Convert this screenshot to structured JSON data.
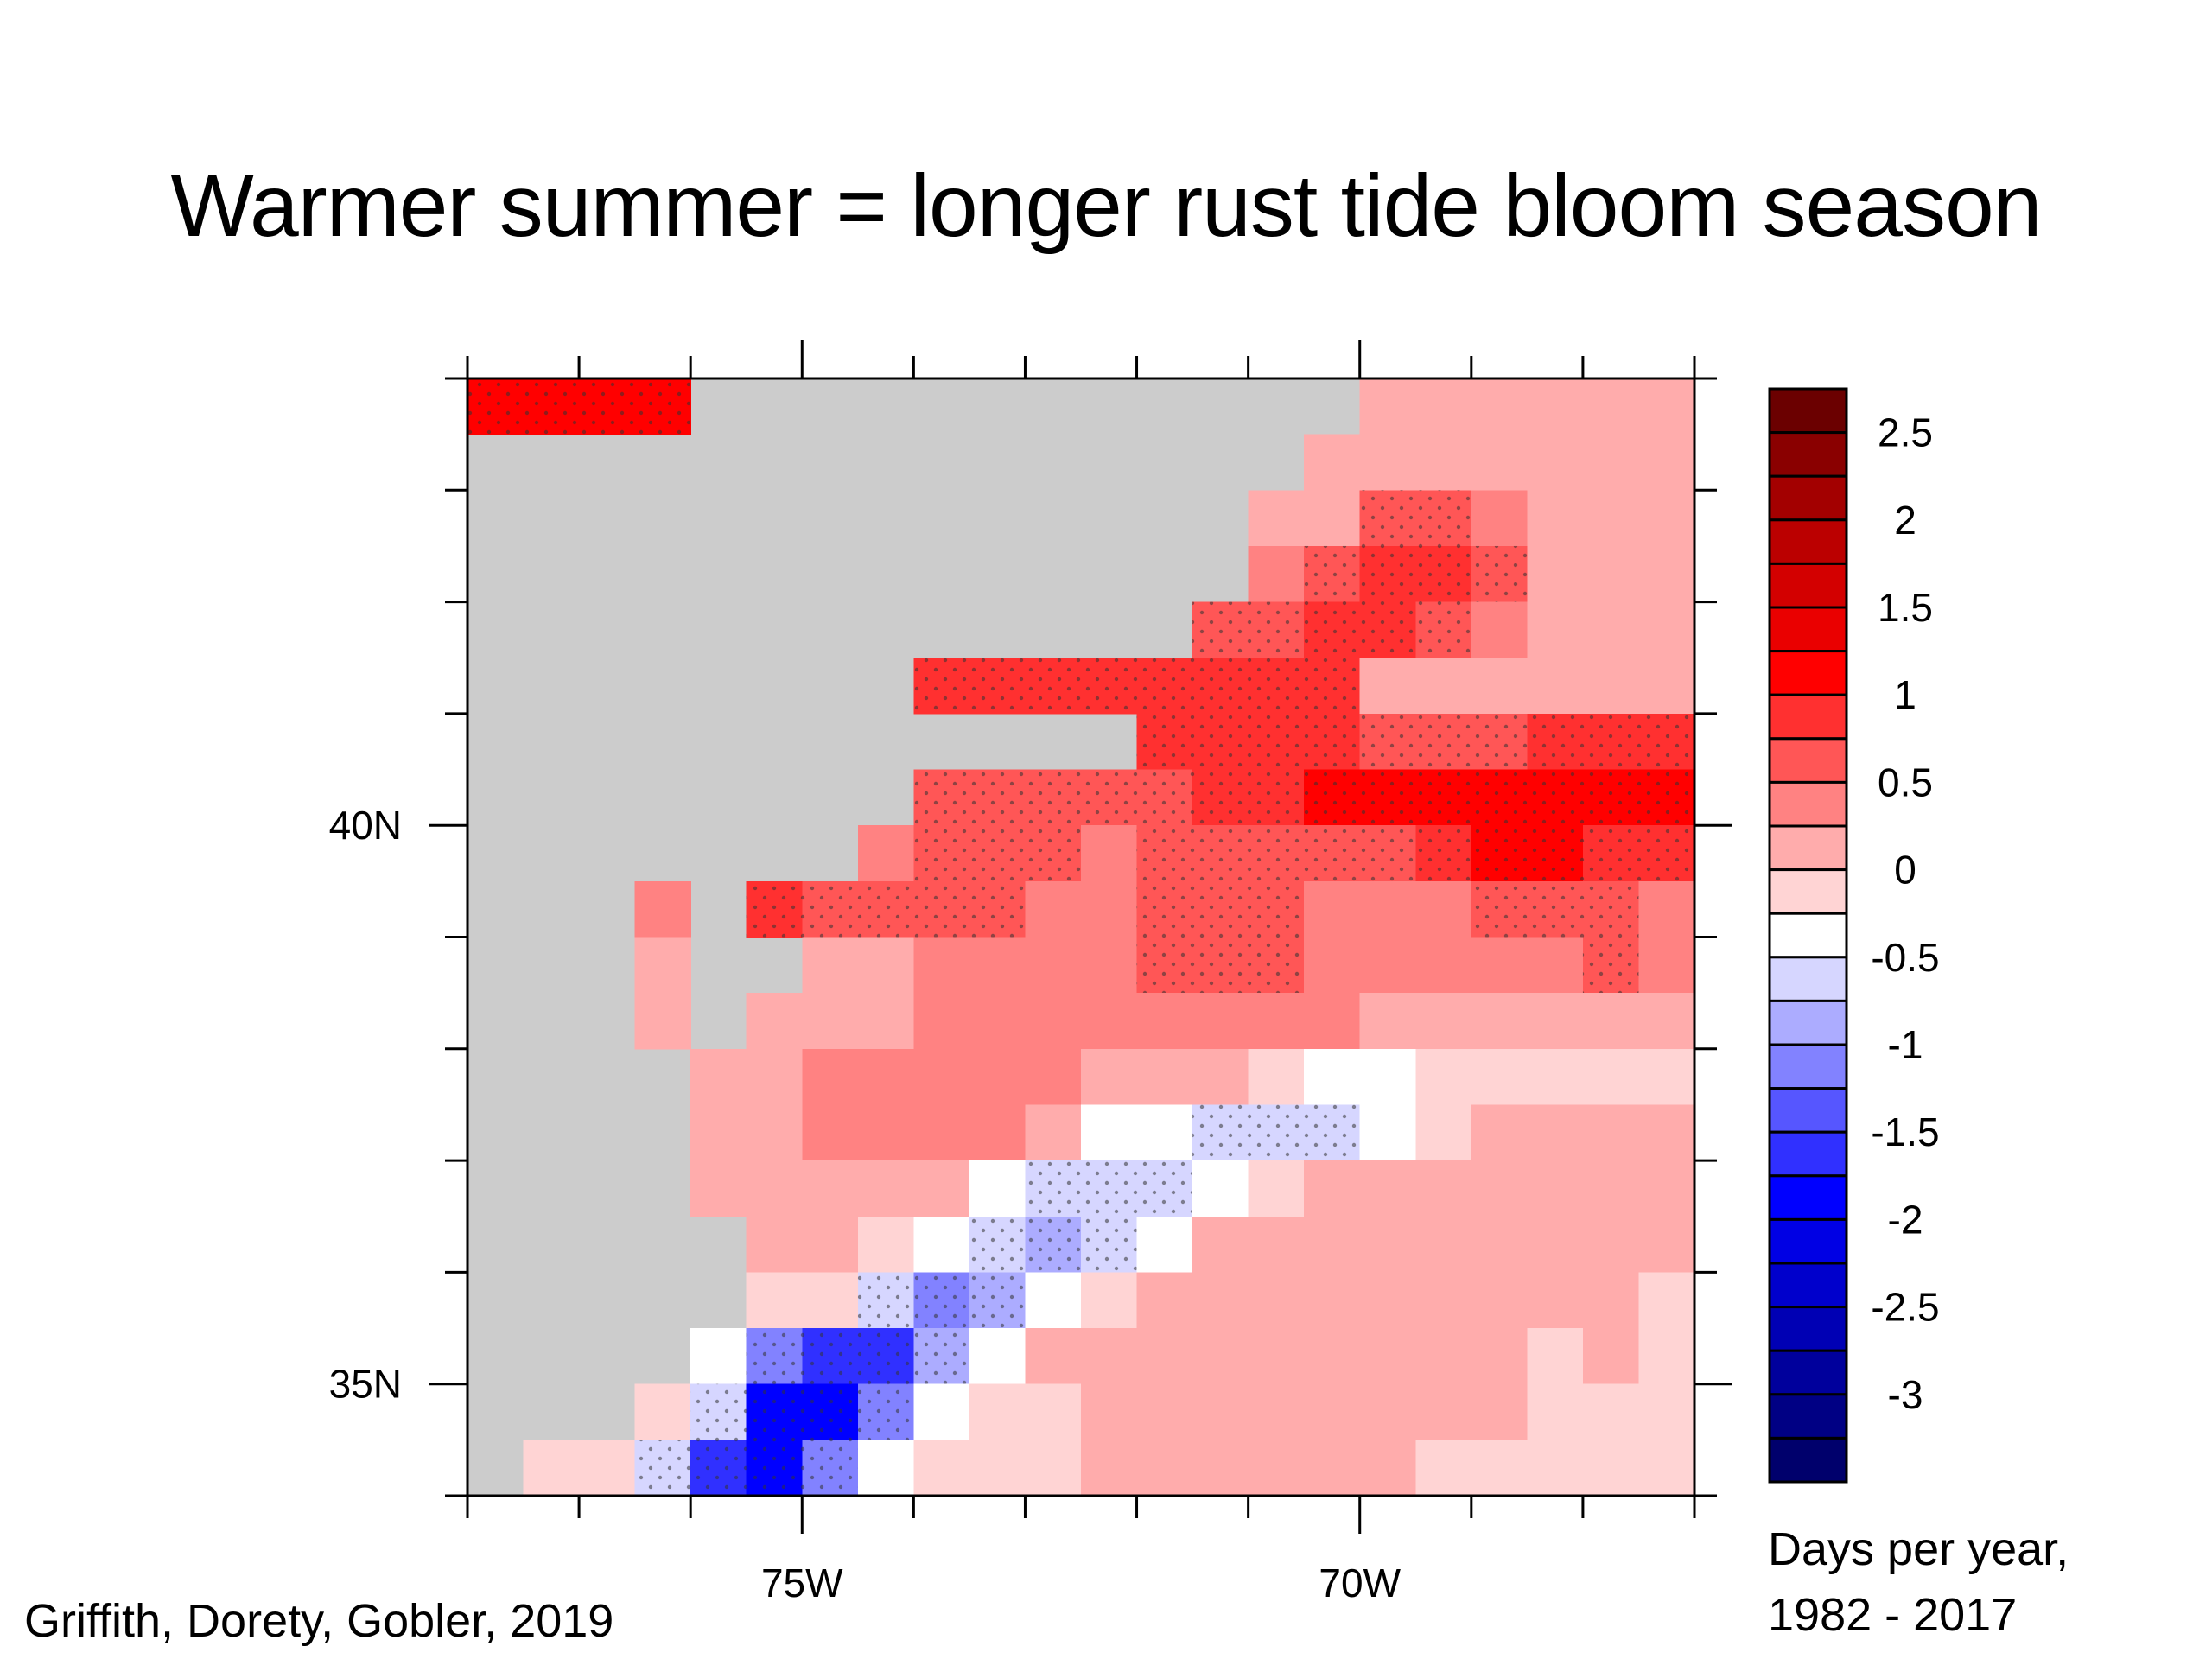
{
  "slide": {
    "title": "Warmer summer = longer rust tide bloom season",
    "citation": "Griffith, Dorety, Gobler, 2019",
    "units_line1": "Days per year,",
    "units_line2": "1982 - 2017"
  },
  "chart_data": {
    "type": "heatmap",
    "title": "",
    "xlabel": "",
    "ylabel": "",
    "xlim": [
      -78,
      -67
    ],
    "ylim": [
      34,
      44
    ],
    "land_color": "#cccccc",
    "x": [
      -77.75,
      -77.25,
      -76.75,
      -76.25,
      -75.75,
      -75.25,
      -74.75,
      -74.25,
      -73.75,
      -73.25,
      -72.75,
      -72.25,
      -71.75,
      -71.25,
      -70.75,
      -70.25,
      -69.75,
      -69.25,
      -68.75,
      -68.25,
      -67.75,
      -67.25
    ],
    "y": [
      43.75,
      43.25,
      42.75,
      42.25,
      41.75,
      41.25,
      40.75,
      40.25,
      39.75,
      39.25,
      38.75,
      38.25,
      37.75,
      37.25,
      36.75,
      36.25,
      35.75,
      35.25,
      34.75,
      34.25
    ],
    "values": [
      [
        1,
        1,
        1,
        1,
        null,
        null,
        null,
        null,
        null,
        null,
        null,
        null,
        null,
        null,
        null,
        null,
        0.1,
        0.1,
        0.1,
        0.1,
        0.1,
        0.1
      ],
      [
        null,
        null,
        null,
        null,
        null,
        null,
        null,
        null,
        null,
        null,
        null,
        null,
        null,
        null,
        null,
        0.1,
        0.1,
        0.1,
        0.1,
        0.1,
        0.1,
        0.1
      ],
      [
        null,
        null,
        null,
        null,
        null,
        null,
        null,
        null,
        null,
        null,
        null,
        null,
        null,
        null,
        0.1,
        0.1,
        0.6,
        0.6,
        0.4,
        0.1,
        0.1,
        0.1
      ],
      [
        null,
        null,
        null,
        null,
        null,
        null,
        null,
        null,
        null,
        null,
        null,
        null,
        null,
        null,
        0.4,
        0.6,
        0.9,
        0.9,
        0.6,
        0.1,
        0.1,
        0.1
      ],
      [
        null,
        null,
        null,
        null,
        null,
        null,
        null,
        null,
        null,
        null,
        null,
        null,
        null,
        0.6,
        0.6,
        0.9,
        0.9,
        0.6,
        0.4,
        0.1,
        0.1,
        0.1
      ],
      [
        null,
        null,
        null,
        null,
        null,
        null,
        null,
        null,
        0.9,
        0.9,
        0.9,
        0.9,
        0.9,
        0.9,
        0.9,
        0.9,
        0.1,
        0.1,
        0.1,
        0.1,
        0.1,
        0.1
      ],
      [
        null,
        null,
        null,
        null,
        null,
        null,
        null,
        null,
        null,
        null,
        null,
        null,
        0.9,
        0.9,
        0.9,
        0.9,
        0.6,
        0.6,
        0.6,
        0.9,
        0.9,
        0.9
      ],
      [
        null,
        null,
        null,
        null,
        null,
        null,
        null,
        null,
        0.6,
        0.6,
        0.6,
        0.6,
        0.6,
        0.9,
        0.9,
        1.1,
        1.1,
        1.1,
        1.1,
        1.1,
        1.1,
        1.1
      ],
      [
        null,
        null,
        null,
        null,
        null,
        null,
        null,
        0.4,
        0.6,
        0.6,
        0.6,
        0.4,
        0.6,
        0.6,
        0.6,
        0.6,
        0.6,
        0.9,
        1.1,
        1.1,
        0.9,
        0.9
      ],
      [
        null,
        null,
        null,
        0.4,
        null,
        0.9,
        0.6,
        0.6,
        0.6,
        0.6,
        0.4,
        0.4,
        0.6,
        0.6,
        0.6,
        0.4,
        0.4,
        0.4,
        0.6,
        0.6,
        0.6,
        0.4
      ],
      [
        null,
        null,
        null,
        0.1,
        null,
        null,
        0.1,
        0.1,
        0.4,
        0.4,
        0.4,
        0.4,
        0.6,
        0.6,
        0.6,
        0.4,
        0.4,
        0.4,
        0.4,
        0.4,
        0.6,
        0.4
      ],
      [
        null,
        null,
        null,
        0.1,
        null,
        0.1,
        0.1,
        0.1,
        0.4,
        0.4,
        0.4,
        0.4,
        0.4,
        0.4,
        0.4,
        0.4,
        0.1,
        0.1,
        0.1,
        0.1,
        0.1,
        0.1
      ],
      [
        null,
        null,
        null,
        null,
        0.1,
        0.1,
        0.4,
        0.4,
        0.4,
        0.4,
        0.4,
        0.1,
        0.1,
        0.1,
        -0.1,
        -0.3,
        -0.3,
        -0.1,
        -0.1,
        -0.1,
        -0.1,
        -0.1
      ],
      [
        null,
        null,
        null,
        null,
        0.1,
        0.1,
        0.4,
        0.4,
        0.4,
        0.4,
        0.1,
        -0.3,
        -0.3,
        -0.6,
        -0.6,
        -0.6,
        -0.3,
        -0.1,
        0.1,
        0.1,
        0.1,
        0.1
      ],
      [
        null,
        null,
        null,
        null,
        0.1,
        0.1,
        0.1,
        0.1,
        0.1,
        -0.3,
        -0.6,
        -0.6,
        -0.6,
        -0.3,
        -0.1,
        0.1,
        0.1,
        0.1,
        0.1,
        0.1,
        0.1,
        0.1
      ],
      [
        null,
        null,
        null,
        null,
        null,
        0.1,
        0.1,
        -0.1,
        -0.3,
        -0.6,
        -0.9,
        -0.6,
        -0.3,
        0.1,
        0.1,
        0.1,
        0.1,
        0.1,
        0.1,
        0.1,
        0.1,
        0.1
      ],
      [
        null,
        null,
        null,
        null,
        null,
        -0.1,
        -0.1,
        -0.6,
        -1.1,
        -0.9,
        -0.3,
        -0.1,
        0.1,
        0.1,
        0.1,
        0.1,
        0.1,
        0.1,
        0.1,
        0.1,
        0.1,
        -0.1
      ],
      [
        null,
        null,
        null,
        null,
        -0.3,
        -1.1,
        -1.6,
        -1.6,
        -0.9,
        -0.3,
        0.1,
        0.1,
        0.1,
        0.1,
        0.1,
        0.1,
        0.1,
        0.1,
        0.1,
        -0.1,
        0.1,
        -0.1
      ],
      [
        null,
        null,
        null,
        -0.1,
        -0.6,
        -1.8,
        -1.8,
        -1.1,
        -0.3,
        -0.1,
        -0.1,
        0.1,
        0.1,
        0.1,
        0.1,
        0.1,
        0.1,
        0.1,
        0.1,
        -0.1,
        -0.1,
        -0.1
      ],
      [
        null,
        -0.1,
        -0.1,
        -0.6,
        -1.6,
        -1.8,
        -1.1,
        -0.3,
        -0.1,
        -0.1,
        -0.1,
        0.1,
        0.1,
        0.1,
        0.1,
        0.1,
        0.1,
        -0.1,
        -0.1,
        -0.1,
        -0.1,
        -0.1
      ]
    ],
    "x_ticks": [
      -78,
      -77,
      -76,
      -75,
      -74,
      -73,
      -72,
      -71,
      -70,
      -69,
      -68,
      -67
    ],
    "y_ticks": [
      34,
      35,
      36,
      37,
      38,
      39,
      40,
      41,
      42,
      43,
      44
    ],
    "x_tick_labels": [
      {
        "value": -75,
        "label": "75W"
      },
      {
        "value": -70,
        "label": "70W"
      }
    ],
    "y_tick_labels": [
      {
        "value": 40,
        "label": "40N"
      },
      {
        "value": 35,
        "label": "35N"
      }
    ],
    "colorbar": {
      "levels": [
        2.5,
        2.25,
        2,
        1.75,
        1.5,
        1.25,
        1,
        0.75,
        0.5,
        0.25,
        0,
        -0.25,
        -0.5,
        -0.75,
        -1,
        -1.25,
        -1.5,
        -1.75,
        -2,
        -2.25,
        -2.5,
        -2.75,
        -3,
        -3.25
      ],
      "colors": [
        "#6b0000",
        "#8a0000",
        "#a30000",
        "#bb0000",
        "#d30000",
        "#ea0000",
        "#ff0000",
        "#ff3030",
        "#ff5656",
        "#ff8282",
        "#ffacac",
        "#ffd4d4",
        "#ffffff",
        "#d6d6ff",
        "#acacff",
        "#8282ff",
        "#5656ff",
        "#3030ff",
        "#0000ff",
        "#0000e4",
        "#0000cc",
        "#0000b4",
        "#00009c",
        "#000084",
        "#00006c"
      ],
      "labels": [
        {
          "value": 2.5,
          "label": "2.5"
        },
        {
          "value": 2,
          "label": "2"
        },
        {
          "value": 1.5,
          "label": "1.5"
        },
        {
          "value": 1,
          "label": "1"
        },
        {
          "value": 0.5,
          "label": "0.5"
        },
        {
          "value": 0,
          "label": "0"
        },
        {
          "value": -0.5,
          "label": "-0.5"
        },
        {
          "value": -1,
          "label": "-1"
        },
        {
          "value": -1.5,
          "label": "-1.5"
        },
        {
          "value": -2,
          "label": "-2"
        },
        {
          "value": -2.5,
          "label": "-2.5"
        },
        {
          "value": -3,
          "label": "-3"
        }
      ]
    }
  }
}
